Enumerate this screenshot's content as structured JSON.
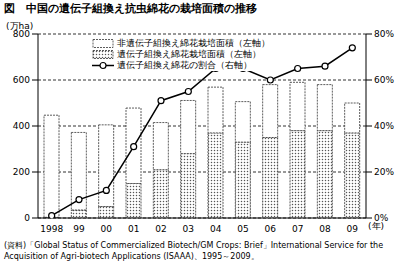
{
  "chart_data": {
    "type": "bar",
    "title": "図　中国の遺伝子組換え抗虫綿花の栽培面積の推移",
    "y_label": "(万ha)",
    "x_label": "(年)",
    "source": "(資料)「Global Status of Commercialized Biotech/GM Crops: Brief」International Service for the Acquisition of Agri-biotech Applications (ISAAA)、1995～2009。",
    "categories": [
      "1998",
      "99",
      "00",
      "01",
      "02",
      "03",
      "04",
      "05",
      "06",
      "07",
      "08",
      "09"
    ],
    "series": [
      {
        "name": "非遺伝子組換え綿花栽培面積（左軸）",
        "type": "bar",
        "color": "#ffffff",
        "values": [
          444,
          337,
          355,
          328,
          205,
          231,
          199,
          176,
          230,
          210,
          200,
          130
        ]
      },
      {
        "name": "遺伝子組換え綿花栽培面積（左軸）",
        "type": "bar",
        "color": "#555555",
        "values": [
          3,
          35,
          50,
          150,
          210,
          280,
          370,
          330,
          350,
          380,
          380,
          370
        ]
      },
      {
        "name": "遺伝子組換え綿花の割合（右軸）",
        "type": "line",
        "axis": "y2",
        "color": "#000000",
        "marker": "circle",
        "values": [
          1,
          8,
          12,
          31,
          51,
          55,
          65,
          65,
          60,
          65,
          66,
          74
        ]
      }
    ],
    "stacked": true,
    "grid": true,
    "legend": "upper left",
    "ylim": [
      0,
      800
    ],
    "yticks": [
      0,
      200,
      400,
      600,
      800
    ],
    "y2lim": [
      0,
      80
    ],
    "y2ticks": [
      {
        "value": 0,
        "label": "0%"
      },
      {
        "value": 20,
        "label": "20%"
      },
      {
        "value": 40,
        "label": "40%"
      },
      {
        "value": 60,
        "label": "60%"
      },
      {
        "value": 80,
        "label": "80%"
      }
    ]
  }
}
